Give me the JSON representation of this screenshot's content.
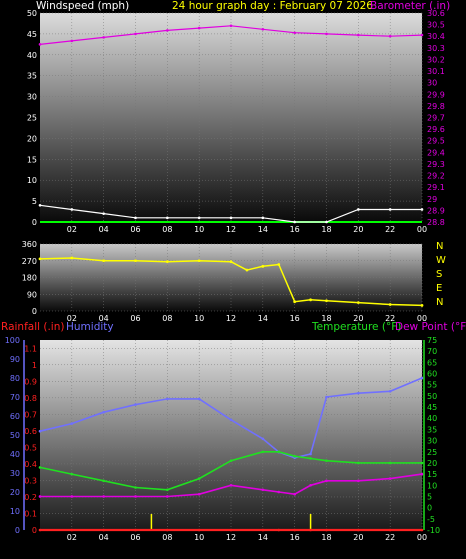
{
  "header": {
    "left_label": "Windspeed (mph)",
    "center_label": "24 hour graph day : February 07 2026",
    "right_label": "Barometer (.in)"
  },
  "colors": {
    "windspeed": "#ffffff",
    "gust_area": "#ffffff",
    "barometer": "#e000e0",
    "wind_dir": "#ffff00",
    "rainfall": "#ff2020",
    "humidity": "#7070ff",
    "temperature": "#20e020",
    "dewpoint": "#e000e0",
    "label_yellow": "#ffff00",
    "grid": "#777777"
  },
  "x_hours": [
    "02",
    "04",
    "06",
    "08",
    "10",
    "12",
    "14",
    "16",
    "18",
    "20",
    "22",
    "00"
  ],
  "chart_data": [
    {
      "type": "line",
      "title": "24 hour graph day : February 07 2026",
      "ylabel": "Windspeed (mph)",
      "y2label": "Barometer (.in)",
      "ylim": [
        0,
        50
      ],
      "yticks": [
        0,
        5,
        10,
        15,
        20,
        25,
        30,
        35,
        40,
        45,
        50
      ],
      "y2lim": [
        28.8,
        30.6
      ],
      "y2ticks": [
        "28.8",
        "28.9",
        "29",
        "29.1",
        "29.2",
        "29.3",
        "29.4",
        "29.5",
        "29.6",
        "29.7",
        "29.8",
        "29.9",
        "30",
        "30.1",
        "30.2",
        "30.3",
        "30.4",
        "30.5",
        "30.6"
      ],
      "x": [
        0,
        2,
        4,
        6,
        8,
        10,
        12,
        14,
        16,
        18,
        20,
        22,
        24
      ],
      "series": [
        {
          "name": "Barometer (.in)",
          "axis": "right",
          "values": [
            30.33,
            30.36,
            30.39,
            30.42,
            30.45,
            30.47,
            30.49,
            30.46,
            30.43,
            30.42,
            30.41,
            30.4,
            30.41
          ]
        },
        {
          "name": "Windspeed (mph)",
          "axis": "left",
          "values": [
            4,
            3,
            2,
            1,
            1,
            1,
            1,
            1,
            0,
            0,
            3,
            3,
            3
          ]
        }
      ]
    },
    {
      "type": "line",
      "ylabel": "",
      "ylim": [
        0,
        360
      ],
      "yticks": [
        0,
        90,
        180,
        270,
        360
      ],
      "y2ticks": [
        "N",
        "W",
        "S",
        "E",
        "N"
      ],
      "x": [
        0,
        2,
        4,
        6,
        8,
        10,
        12,
        13,
        14,
        15,
        16,
        17,
        18,
        20,
        22,
        24
      ],
      "series": [
        {
          "name": "",
          "values": [
            280,
            285,
            270,
            270,
            265,
            270,
            265,
            220,
            240,
            250,
            50,
            60,
            55,
            45,
            35,
            30
          ]
        }
      ]
    },
    {
      "type": "line",
      "ylim_left1": [
        0,
        100
      ],
      "left1_label": "Humidity",
      "left1_ticks": [
        0,
        10,
        20,
        30,
        40,
        50,
        60,
        70,
        80,
        90,
        100
      ],
      "left2_label": "Rainfall (.in)",
      "left2_ticks": [
        "0",
        "0.1",
        "0.2",
        "0.3",
        "0.4",
        "0.5",
        "0.6",
        "0.7",
        "0.8",
        "0.9",
        "1",
        "1.1"
      ],
      "right_label1": "Temperature (°F)",
      "right_label2": "Dew Point (°F)",
      "ylim_right": [
        -10,
        75
      ],
      "right_ticks": [
        -10,
        -5,
        0,
        5,
        10,
        15,
        20,
        25,
        30,
        35,
        40,
        45,
        50,
        55,
        60,
        65,
        70,
        75
      ],
      "x": [
        0,
        2,
        4,
        6,
        8,
        10,
        12,
        14,
        15,
        16,
        17,
        18,
        20,
        22,
        24
      ],
      "series": [
        {
          "name": "Humidity",
          "axis": "left1",
          "values": [
            52,
            56,
            62,
            66,
            69,
            69,
            58,
            48,
            41,
            38,
            40,
            70,
            72,
            73,
            80
          ]
        },
        {
          "name": "Temperature (°F)",
          "axis": "right",
          "values": [
            18,
            15,
            12,
            9,
            8,
            13,
            21,
            25,
            25,
            23,
            22,
            21,
            20,
            20,
            20
          ]
        },
        {
          "name": "Dew Point (°F)",
          "axis": "right",
          "values": [
            5,
            5,
            5,
            5,
            5,
            6,
            10,
            8,
            7,
            6,
            10,
            12,
            12,
            13,
            15
          ]
        },
        {
          "name": "Rainfall (.in)",
          "axis": "left2",
          "values": [
            0,
            0,
            0,
            0,
            0,
            0,
            0,
            0,
            0,
            0,
            0,
            0,
            0,
            0,
            0
          ]
        }
      ]
    }
  ]
}
